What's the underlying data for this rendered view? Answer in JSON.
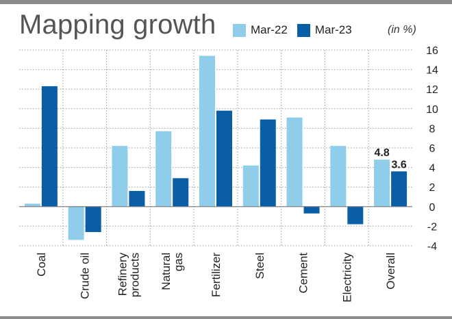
{
  "title": "Mapping growth",
  "unit_note": "(in %)",
  "colors": {
    "mar22": "#8fcdea",
    "mar23": "#0a5ea6",
    "grid": "#9a9a9a",
    "frame": "#8c8c8c"
  },
  "legend": [
    {
      "label": "Mar-22",
      "color": "#8fcdea"
    },
    {
      "label": "Mar-23",
      "color": "#0a5ea6"
    }
  ],
  "chart_data": {
    "type": "bar",
    "title": "Mapping growth",
    "categories": [
      [
        "Coal"
      ],
      [
        "Crude oil"
      ],
      [
        "Refinery",
        "products"
      ],
      [
        "Natural",
        "gas"
      ],
      [
        "Fertilizer"
      ],
      [
        "Steel"
      ],
      [
        "Cement"
      ],
      [
        "Electricity"
      ],
      [
        "Overall"
      ]
    ],
    "series": [
      {
        "name": "Mar-22",
        "values": [
          0.3,
          -3.4,
          6.2,
          7.7,
          15.4,
          4.2,
          9.1,
          6.2,
          4.8
        ]
      },
      {
        "name": "Mar-23",
        "values": [
          12.3,
          -2.6,
          1.6,
          2.9,
          9.8,
          8.9,
          -0.7,
          -1.8,
          3.6
        ]
      }
    ],
    "data_labels": [
      {
        "series": 0,
        "index": 8,
        "text": "4.8"
      },
      {
        "series": 1,
        "index": 8,
        "text": "3.6"
      }
    ],
    "ylim": [
      -4,
      16
    ],
    "yticks": [
      "16",
      "14",
      "12",
      "10",
      "8",
      "6",
      "4",
      "2",
      "0",
      "-2",
      "-4"
    ],
    "ytick_values": [
      16,
      14,
      12,
      10,
      8,
      6,
      4,
      2,
      0,
      -2,
      -4
    ],
    "grid": true,
    "legend_position": "top"
  }
}
